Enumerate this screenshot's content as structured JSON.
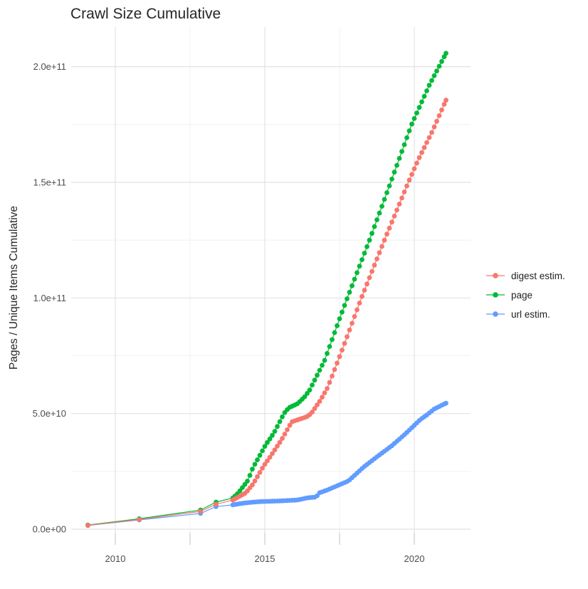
{
  "title": "Crawl Size Cumulative",
  "y_axis_label": "Pages / Unique Items Cumulative",
  "legend": {
    "position": "right",
    "items": [
      {
        "label": "digest estim.",
        "color": "#F8766D"
      },
      {
        "label": "page",
        "color": "#00BA38"
      },
      {
        "label": "url estim.",
        "color": "#619CFF"
      }
    ]
  },
  "style": {
    "background": "#FFFFFF",
    "grid_major": "#E2E2E2",
    "grid_minor": "#F0F0F0",
    "axis_tick": "#E0E0E0",
    "axis_text": "#4D4D4D",
    "title_color": "#262626"
  },
  "chart_data": {
    "type": "line",
    "markers": true,
    "title": "Crawl Size Cumulative",
    "xlabel": "",
    "ylabel": "Pages / Unique Items Cumulative",
    "y_unit": "1e9 (billions of pages / unique items)",
    "xlim": [
      2008.5,
      2021.9
    ],
    "ylim": [
      0,
      217
    ],
    "grid": true,
    "legend_position": "right",
    "x_ticks": [
      {
        "value": 2010,
        "label": "2010"
      },
      {
        "value": 2015,
        "label": "2015"
      },
      {
        "value": 2020,
        "label": "2020"
      }
    ],
    "x_minor_ticks": [
      2012.5,
      2017.5
    ],
    "y_ticks": [
      {
        "value": 0,
        "label": "0.0e+00"
      },
      {
        "value": 50,
        "label": "5.0e+10"
      },
      {
        "value": 100,
        "label": "1.0e+11"
      },
      {
        "value": 150,
        "label": "1.5e+11"
      },
      {
        "value": 200,
        "label": "2.0e+11"
      }
    ],
    "y_minor_ticks": [
      25,
      75,
      125,
      175
    ],
    "marker_cadence": {
      "note": "sparse yearly crawls before 2014, roughly monthly crawl dots afterwards",
      "monthly_from": 2014.0,
      "monthly_to": 2021.0,
      "interval_years": 0.08333,
      "last_year": 2021.06
    },
    "series": [
      {
        "name": "url estim.",
        "color": "#619CFF",
        "points": [
          [
            2009.08,
            1.6
          ],
          [
            2010.8,
            4.0
          ],
          [
            2012.85,
            6.8
          ],
          [
            2013.37,
            9.8
          ],
          [
            2013.93,
            10.5
          ],
          [
            2014.3,
            11.3
          ],
          [
            2014.8,
            11.9
          ],
          [
            2015.5,
            12.2
          ],
          [
            2016.07,
            12.6
          ],
          [
            2016.45,
            13.6
          ],
          [
            2016.72,
            13.9
          ],
          [
            2016.82,
            15.7
          ],
          [
            2017.1,
            17.0
          ],
          [
            2017.8,
            20.9
          ],
          [
            2018.3,
            26.8
          ],
          [
            2018.76,
            31.4
          ],
          [
            2019.24,
            36.0
          ],
          [
            2019.7,
            41.2
          ],
          [
            2019.95,
            44.3
          ],
          [
            2020.2,
            47.4
          ],
          [
            2020.43,
            49.5
          ],
          [
            2020.67,
            52.0
          ],
          [
            2021.06,
            54.5
          ]
        ]
      },
      {
        "name": "page",
        "color": "#00BA38",
        "points": [
          [
            2009.08,
            1.8
          ],
          [
            2010.8,
            4.5
          ],
          [
            2012.85,
            8.3
          ],
          [
            2013.37,
            11.7
          ],
          [
            2013.93,
            13.5
          ],
          [
            2014.1,
            15.5
          ],
          [
            2014.43,
            21.0
          ],
          [
            2014.6,
            26.5
          ],
          [
            2015.02,
            36.3
          ],
          [
            2015.3,
            41.5
          ],
          [
            2015.64,
            50.0
          ],
          [
            2015.8,
            52.5
          ],
          [
            2016.1,
            54.3
          ],
          [
            2016.35,
            57.5
          ],
          [
            2016.5,
            60.2
          ],
          [
            2017.0,
            73.0
          ],
          [
            2017.5,
            91.0
          ],
          [
            2017.76,
            100.0
          ],
          [
            2018.5,
            125.0
          ],
          [
            2019.21,
            150.0
          ],
          [
            2019.91,
            175.0
          ],
          [
            2020.5,
            192.0
          ],
          [
            2021.06,
            205.8
          ]
        ]
      },
      {
        "name": "digest estim.",
        "color": "#F8766D",
        "points": [
          [
            2009.08,
            1.7
          ],
          [
            2010.8,
            4.2
          ],
          [
            2012.85,
            7.7
          ],
          [
            2013.37,
            10.8
          ],
          [
            2013.93,
            12.6
          ],
          [
            2014.36,
            15.7
          ],
          [
            2014.6,
            19.4
          ],
          [
            2014.95,
            27.1
          ],
          [
            2015.2,
            31.7
          ],
          [
            2015.55,
            38.5
          ],
          [
            2015.9,
            46.4
          ],
          [
            2016.4,
            48.6
          ],
          [
            2016.55,
            50.0
          ],
          [
            2016.86,
            55.8
          ],
          [
            2017.1,
            61.2
          ],
          [
            2017.6,
            78.0
          ],
          [
            2018.23,
            100.0
          ],
          [
            2019.0,
            125.0
          ],
          [
            2019.8,
            150.0
          ],
          [
            2020.14,
            160.0
          ],
          [
            2020.6,
            172.0
          ],
          [
            2021.06,
            185.5
          ]
        ]
      }
    ]
  }
}
